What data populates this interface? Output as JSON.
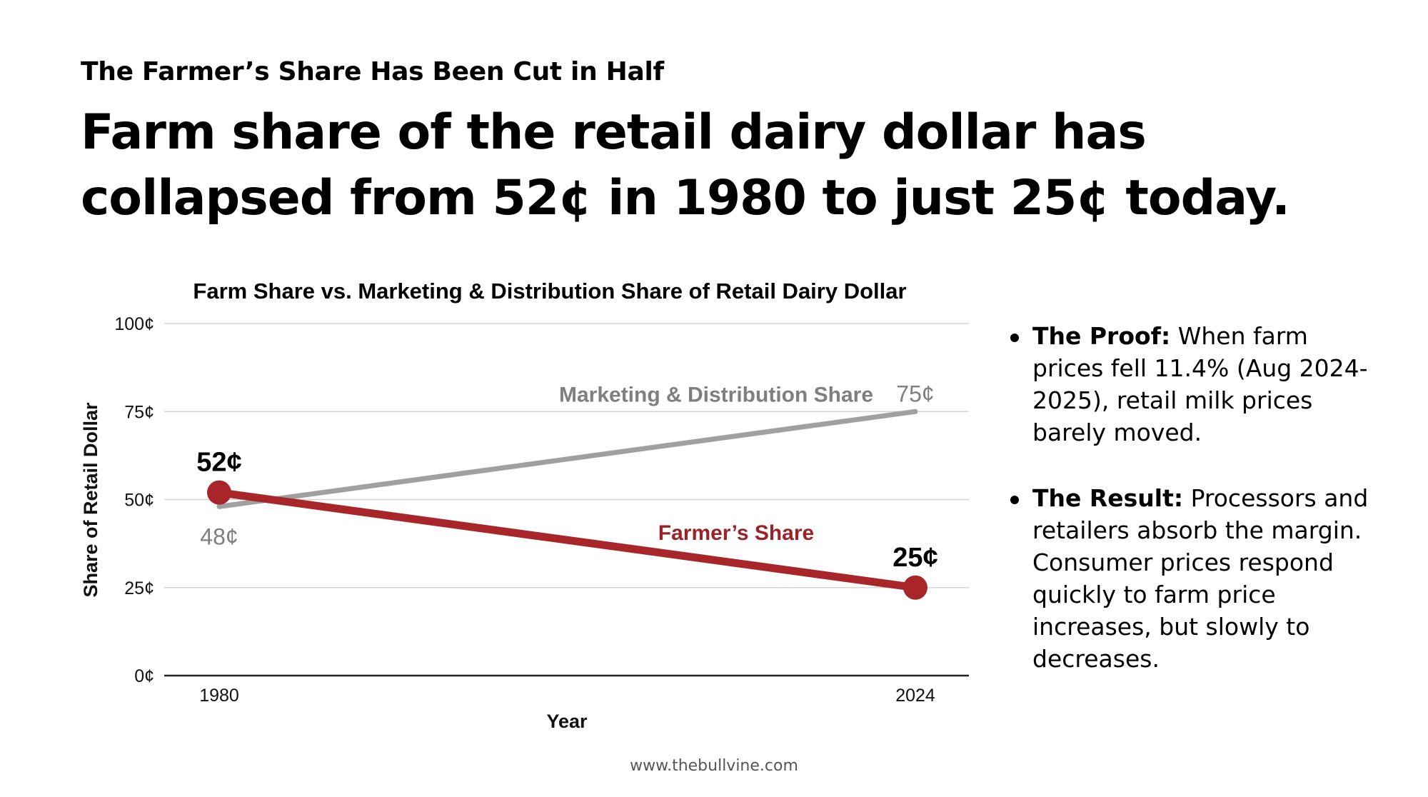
{
  "kicker": "The Farmer’s Share Has Been Cut in Half",
  "headline": "Farm share of the retail dairy dollar has collapsed from 52¢ in 1980 to just 25¢ today.",
  "bullets": [
    {
      "label": "The Proof:",
      "text": " When farm prices fell 11.4% (Aug 2024-2025), retail milk prices barely moved."
    },
    {
      "label": "The Result:",
      "text": " Processors and retailers absorb the margin. Consumer prices respond quickly to farm price increases, but slowly to decreases."
    }
  ],
  "footer": "www.thebullvine.com",
  "chart_data": {
    "type": "line",
    "title": "Farm Share vs. Marketing & Distribution Share of Retail Dairy Dollar",
    "xlabel": "Year",
    "ylabel": "Share of Retail Dollar",
    "x": [
      "1980",
      "2024"
    ],
    "ylim": [
      0,
      100
    ],
    "yticks": [
      0,
      25,
      50,
      75,
      100
    ],
    "ytick_labels": [
      "0¢",
      "25¢",
      "50¢",
      "75¢",
      "100¢"
    ],
    "grid": true,
    "series": [
      {
        "name": "Marketing & Distribution Share",
        "values": [
          48,
          75
        ],
        "color": "#a0a0a0",
        "label_color": "#7f7f7f",
        "data_labels": [
          "48¢",
          "75¢"
        ],
        "markers": false
      },
      {
        "name": "Farmer’s Share",
        "values": [
          52,
          25
        ],
        "color": "#a8262a",
        "label_color": "#9b2226",
        "data_labels": [
          "52¢",
          "25¢"
        ],
        "markers": true
      }
    ]
  }
}
